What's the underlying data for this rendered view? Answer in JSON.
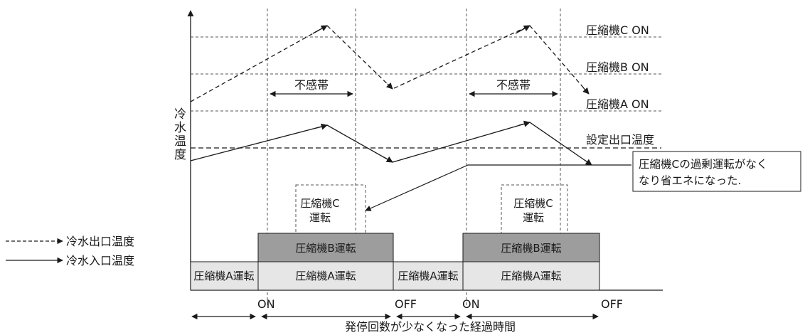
{
  "thresholds": {
    "comp_c_on": "圧縮機C ON",
    "comp_b_on": "圧縮機B ON",
    "comp_a_on": "圧縮機A ON",
    "setpoint": "設定出口温度"
  },
  "dead_band": "不感帯",
  "y_axis_label": [
    "冷",
    "水",
    "温",
    "度"
  ],
  "comp_c_box": [
    "圧縮機C",
    "運転"
  ],
  "bars": {
    "b_run": "圧縮機B運転",
    "a_run": "圧縮機A運転"
  },
  "callout": [
    "圧縮機Cの過剰運転がなく",
    "なり省エネになった."
  ],
  "legend": {
    "outlet": "冷水出口温度",
    "inlet": "冷水入口温度"
  },
  "timeline": {
    "on": "ON",
    "off": "OFF",
    "caption": "発停回数が少なくなった経過時間"
  }
}
